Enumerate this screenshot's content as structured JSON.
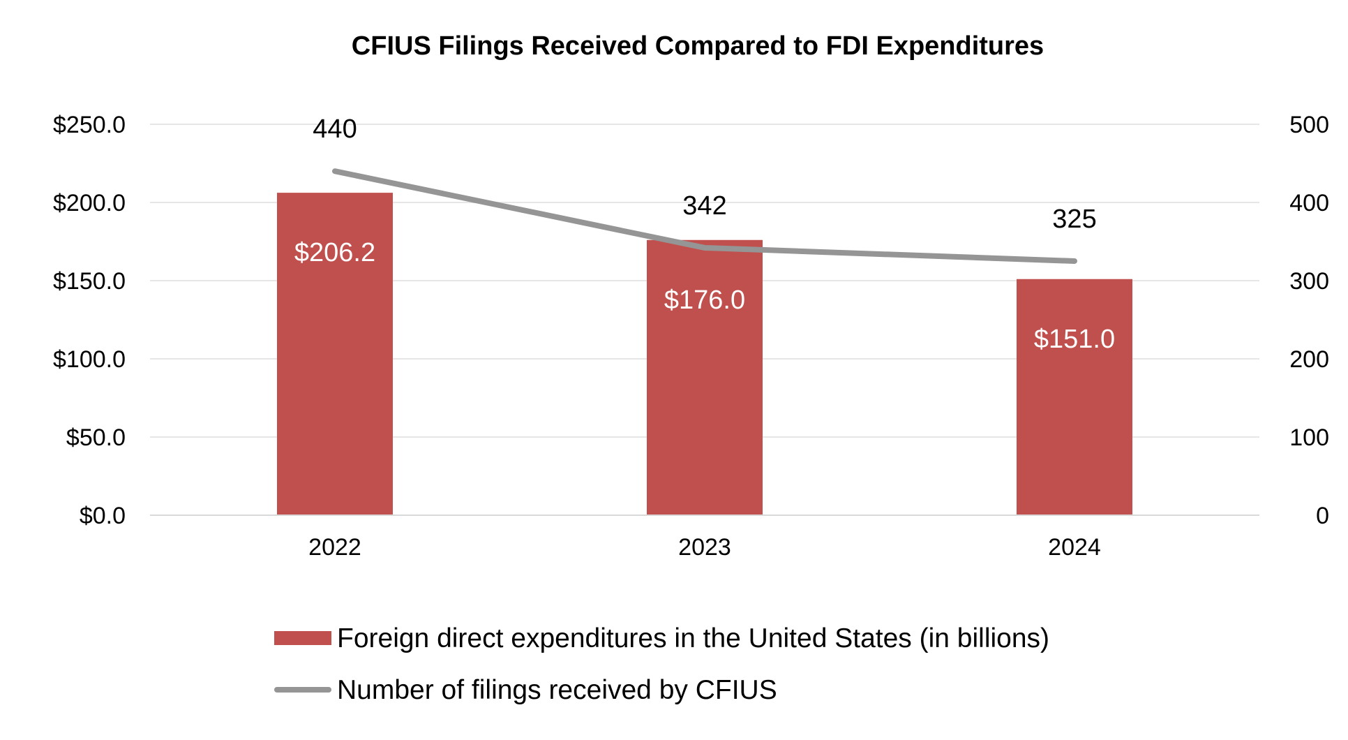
{
  "chart_data": {
    "type": "bar",
    "title": "CFIUS Filings Received Compared to FDI Expenditures",
    "categories": [
      "2022",
      "2023",
      "2024"
    ],
    "series": [
      {
        "name": "Foreign direct expenditures in the United States (in billions)",
        "type": "bar",
        "axis": "left",
        "values": [
          206.2,
          176.0,
          151.0
        ],
        "labels": [
          "$206.2",
          "$176.0",
          "$151.0"
        ],
        "color": "#c0504d"
      },
      {
        "name": "Number of filings received by CFIUS",
        "type": "line",
        "axis": "right",
        "values": [
          440,
          342,
          325
        ],
        "labels": [
          "440",
          "342",
          "325"
        ],
        "color": "#959595"
      }
    ],
    "y_left": {
      "min": 0,
      "max": 250,
      "ticks": [
        0,
        50,
        100,
        150,
        200,
        250
      ],
      "tick_labels": [
        "$0.0",
        "$50.0",
        "$100.0",
        "$150.0",
        "$200.0",
        "$250.0"
      ]
    },
    "y_right": {
      "min": 0,
      "max": 500,
      "ticks": [
        0,
        100,
        200,
        300,
        400,
        500
      ],
      "tick_labels": [
        "0",
        "100",
        "200",
        "300",
        "400",
        "500"
      ]
    },
    "grid": true,
    "legend_position": "bottom",
    "gridline_color": "#e6e6e6",
    "axis_color": "#d9d9d9"
  }
}
